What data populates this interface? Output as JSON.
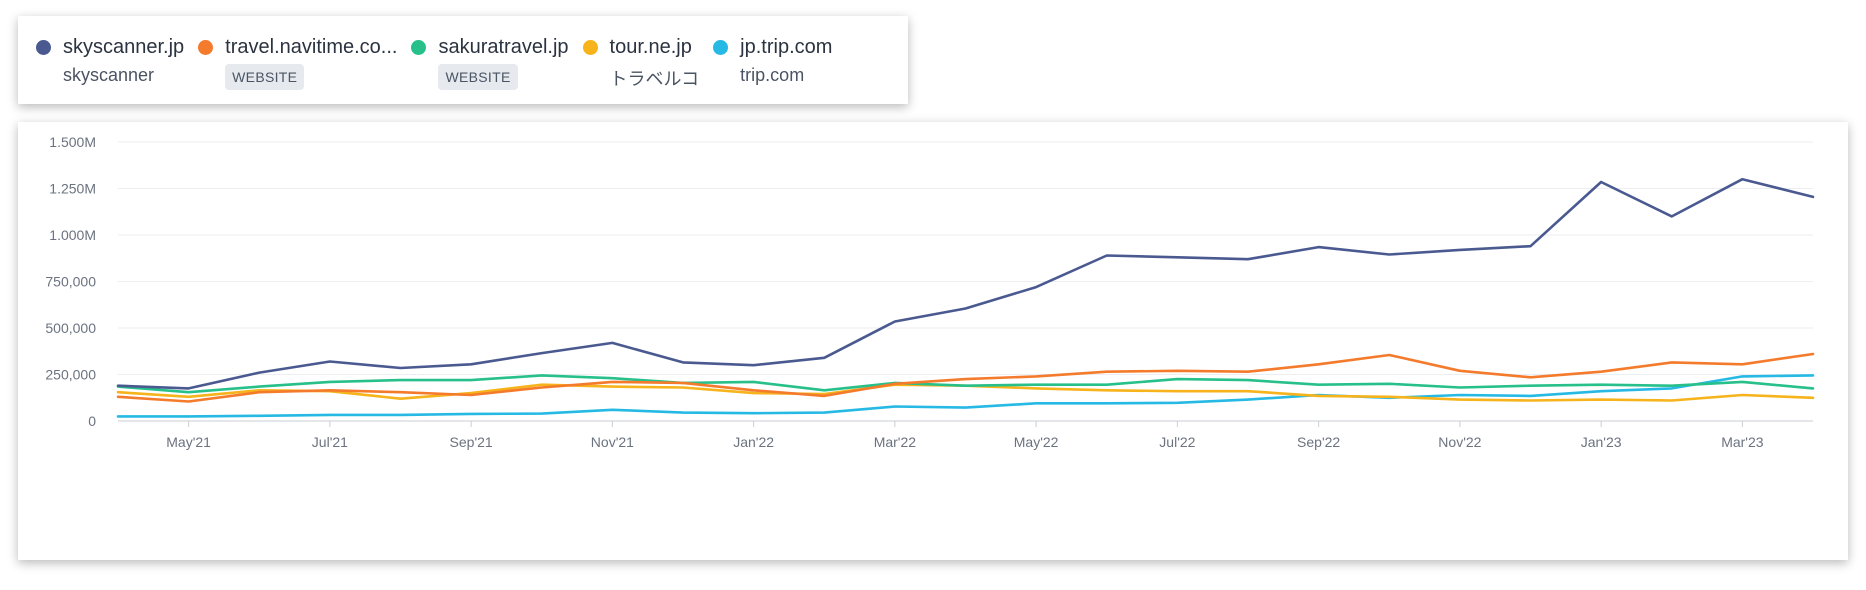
{
  "legend": [
    {
      "name": "skyscanner.jp",
      "sub": "skyscanner",
      "badge": "",
      "color": "#4a5a91"
    },
    {
      "name": "travel.navitime.co...",
      "sub": "",
      "badge": "WEBSITE",
      "color": "#f47a2c"
    },
    {
      "name": "sakuratravel.jp",
      "sub": "",
      "badge": "WEBSITE",
      "color": "#27c08a"
    },
    {
      "name": "tour.ne.jp",
      "sub": "トラベルコ",
      "badge": "",
      "color": "#f6b31b"
    },
    {
      "name": "jp.trip.com",
      "sub": "trip.com",
      "badge": "",
      "color": "#26b9e4"
    }
  ],
  "chart_data": {
    "type": "line",
    "ylim": [
      0,
      1500000
    ],
    "y_ticks": [
      0,
      250000,
      500000,
      750000,
      1000000,
      1250000,
      1500000
    ],
    "y_tick_labels": [
      "0",
      "250,000",
      "500,000",
      "750,000",
      "1.000M",
      "1.250M",
      "1.500M"
    ],
    "x": [
      "Apr'21",
      "May'21",
      "Jun'21",
      "Jul'21",
      "Aug'21",
      "Sep'21",
      "Oct'21",
      "Nov'21",
      "Dec'21",
      "Jan'22",
      "Feb'22",
      "Mar'22",
      "Apr'22",
      "May'22",
      "Jun'22",
      "Jul'22",
      "Aug'22",
      "Sep'22",
      "Oct'22",
      "Nov'22",
      "Dec'22",
      "Jan'23",
      "Feb'23",
      "Mar'23",
      "Apr'23"
    ],
    "x_tick_labels": [
      "May'21",
      "Jul'21",
      "Sep'21",
      "Nov'21",
      "Jan'22",
      "Mar'22",
      "May'22",
      "Jul'22",
      "Sep'22",
      "Nov'22",
      "Jan'23",
      "Mar'23"
    ],
    "grid": true,
    "series": [
      {
        "name": "skyscanner.jp",
        "color": "#4a5a91",
        "values": [
          190000,
          175000,
          260000,
          320000,
          285000,
          305000,
          365000,
          420000,
          315000,
          300000,
          340000,
          535000,
          605000,
          720000,
          890000,
          880000,
          870000,
          935000,
          895000,
          920000,
          940000,
          1285000,
          1100000,
          1300000,
          1205000
        ]
      },
      {
        "name": "travel.navitime.co...",
        "color": "#f47a2c",
        "values": [
          130000,
          105000,
          155000,
          165000,
          155000,
          140000,
          180000,
          210000,
          205000,
          165000,
          135000,
          200000,
          225000,
          240000,
          265000,
          270000,
          265000,
          305000,
          355000,
          270000,
          235000,
          265000,
          315000,
          305000,
          360000
        ]
      },
      {
        "name": "sakuratravel.jp",
        "color": "#27c08a",
        "values": [
          185000,
          155000,
          185000,
          210000,
          220000,
          220000,
          245000,
          230000,
          205000,
          210000,
          165000,
          205000,
          190000,
          195000,
          195000,
          225000,
          220000,
          195000,
          200000,
          180000,
          190000,
          195000,
          190000,
          210000,
          175000
        ]
      },
      {
        "name": "tour.ne.jp",
        "color": "#f6b31b",
        "values": [
          155000,
          130000,
          165000,
          160000,
          120000,
          150000,
          195000,
          185000,
          180000,
          150000,
          145000,
          195000,
          190000,
          175000,
          165000,
          160000,
          160000,
          135000,
          130000,
          115000,
          110000,
          115000,
          110000,
          140000,
          125000
        ]
      },
      {
        "name": "jp.trip.com",
        "color": "#26b9e4",
        "values": [
          25000,
          25000,
          28000,
          33000,
          33000,
          38000,
          40000,
          60000,
          45000,
          42000,
          45000,
          78000,
          72000,
          95000,
          95000,
          98000,
          115000,
          140000,
          125000,
          140000,
          135000,
          160000,
          175000,
          240000,
          245000
        ]
      }
    ]
  }
}
